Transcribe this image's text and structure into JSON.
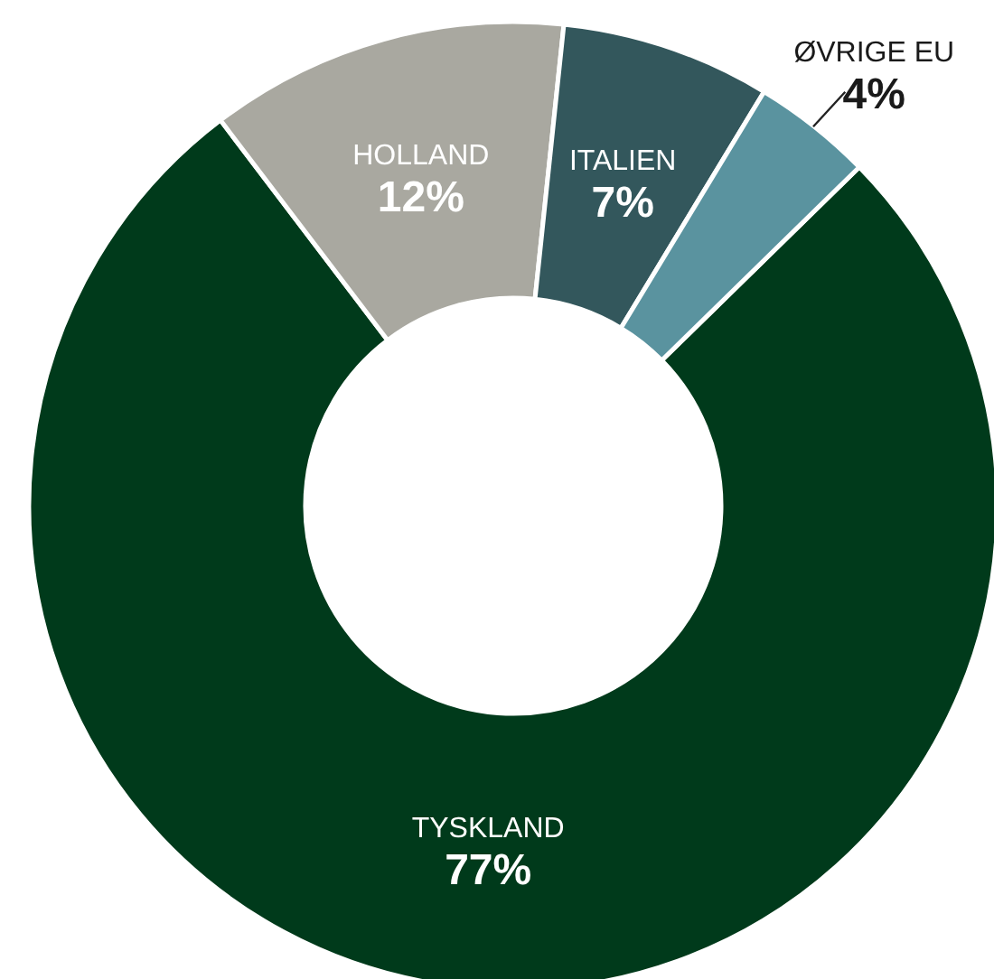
{
  "chart_data": {
    "type": "donut",
    "categories": [
      "TYSKLAND",
      "HOLLAND",
      "ITALIEN",
      "ØVRIGE EU"
    ],
    "values": [
      77,
      12,
      7,
      4
    ],
    "value_labels": [
      "77%",
      "12%",
      "7%",
      "4%"
    ],
    "colors": [
      "#003a1b",
      "#a9a8a0",
      "#33575c",
      "#5a939f"
    ]
  }
}
